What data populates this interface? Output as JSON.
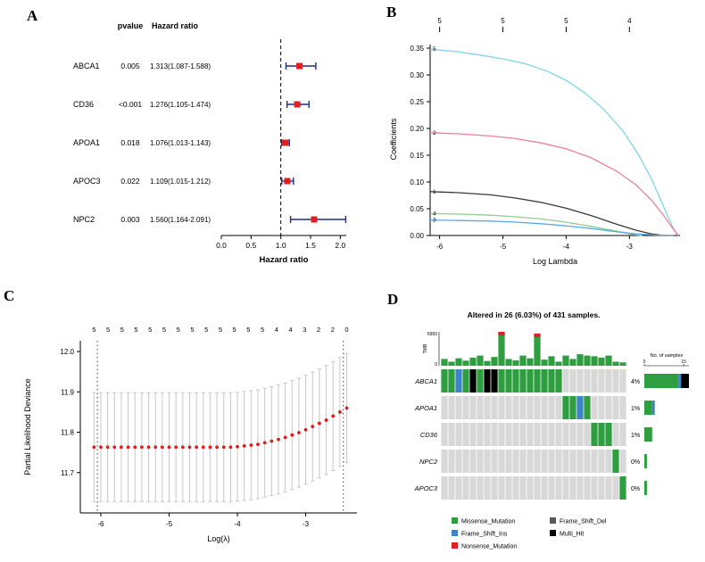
{
  "figure": {
    "panel_labels": [
      "A",
      "B",
      "C",
      "D"
    ],
    "bg": "#ffffff"
  },
  "chart_data": [
    {
      "id": "forest",
      "type": "scatter",
      "panel": "A",
      "headers": {
        "pvalue": "pvalue",
        "hazard_ratio": "Hazard ratio"
      },
      "rows": [
        {
          "gene": "ABCA1",
          "pvalue": "0.005",
          "ci_text": "1.313(1.087-1.588)",
          "hr": 1.313,
          "lo": 1.087,
          "hi": 1.588
        },
        {
          "gene": "CD36",
          "pvalue": "<0.001",
          "ci_text": "1.276(1.105-1.474)",
          "hr": 1.276,
          "lo": 1.105,
          "hi": 1.474
        },
        {
          "gene": "APOA1",
          "pvalue": "0.018",
          "ci_text": "1.076(1.013-1.143)",
          "hr": 1.076,
          "lo": 1.013,
          "hi": 1.143
        },
        {
          "gene": "APOC3",
          "pvalue": "0.022",
          "ci_text": "1.109(1.015-1.212)",
          "hr": 1.109,
          "lo": 1.015,
          "hi": 1.212
        },
        {
          "gene": "NPC2",
          "pvalue": "0.003",
          "ci_text": "1.560(1.164-2.091)",
          "hr": 1.56,
          "lo": 1.164,
          "hi": 2.091
        }
      ],
      "xlabel": "Hazard ratio",
      "x_ticks": [
        "0.0",
        "0.5",
        "1.0",
        "1.5",
        "2.0"
      ],
      "x_tick_values": [
        0,
        0.5,
        1,
        1.5,
        2
      ],
      "xlim": [
        0,
        2.1
      ],
      "ref_line": 1.0,
      "colors": {
        "marker": "#e02020",
        "ci": "#1f2d86"
      }
    },
    {
      "id": "lasso_paths",
      "type": "line",
      "panel": "B",
      "ylabel": "Coefficients",
      "xlabel": "Log Lambda",
      "xlim": [
        -6.15,
        -2.2
      ],
      "ylim": [
        0,
        0.35
      ],
      "x_ticks": [
        -6,
        -5,
        -4,
        -3
      ],
      "y_ticks": [
        "0.00",
        "0.05",
        "0.10",
        "0.15",
        "0.20",
        "0.25",
        "0.30",
        "0.35"
      ],
      "top_axis": {
        "positions": [
          -6,
          -5,
          -4,
          -3
        ],
        "labels": [
          "5",
          "5",
          "5",
          "4"
        ]
      },
      "series": [
        {
          "label": "5",
          "color": "#7dd6e8",
          "points": [
            [
              -6.15,
              0.348
            ],
            [
              -5.75,
              0.344
            ],
            [
              -5.35,
              0.337
            ],
            [
              -5.0,
              0.33
            ],
            [
              -4.65,
              0.321
            ],
            [
              -4.3,
              0.307
            ],
            [
              -4.0,
              0.29
            ],
            [
              -3.7,
              0.266
            ],
            [
              -3.4,
              0.235
            ],
            [
              -3.1,
              0.195
            ],
            [
              -2.85,
              0.15
            ],
            [
              -2.65,
              0.105
            ],
            [
              -2.5,
              0.065
            ],
            [
              -2.4,
              0.038
            ],
            [
              -2.3,
              0.012
            ],
            [
              -2.24,
              0.002
            ],
            [
              -2.22,
              0
            ]
          ]
        },
        {
          "label": "2",
          "color": "#ef7f96",
          "points": [
            [
              -6.15,
              0.192
            ],
            [
              -5.7,
              0.19
            ],
            [
              -5.2,
              0.186
            ],
            [
              -4.8,
              0.181
            ],
            [
              -4.4,
              0.173
            ],
            [
              -4.0,
              0.162
            ],
            [
              -3.6,
              0.145
            ],
            [
              -3.2,
              0.12
            ],
            [
              -2.9,
              0.095
            ],
            [
              -2.65,
              0.066
            ],
            [
              -2.45,
              0.036
            ],
            [
              -2.32,
              0.014
            ],
            [
              -2.24,
              0.002
            ],
            [
              -2.22,
              0
            ]
          ]
        },
        {
          "label": "1",
          "color": "#3a3a3a",
          "points": [
            [
              -6.15,
              0.082
            ],
            [
              -5.7,
              0.08
            ],
            [
              -5.2,
              0.076
            ],
            [
              -4.8,
              0.07
            ],
            [
              -4.4,
              0.062
            ],
            [
              -4.0,
              0.051
            ],
            [
              -3.6,
              0.037
            ],
            [
              -3.2,
              0.021
            ],
            [
              -2.9,
              0.01
            ],
            [
              -2.65,
              0.003
            ],
            [
              -2.45,
              0
            ],
            [
              -2.3,
              0
            ]
          ]
        },
        {
          "label": "4",
          "color": "#8fce8f",
          "points": [
            [
              -6.15,
              0.041
            ],
            [
              -5.7,
              0.04
            ],
            [
              -5.2,
              0.038
            ],
            [
              -4.8,
              0.035
            ],
            [
              -4.4,
              0.031
            ],
            [
              -4.0,
              0.025
            ],
            [
              -3.6,
              0.017
            ],
            [
              -3.2,
              0.008
            ],
            [
              -2.95,
              0.002
            ],
            [
              -2.8,
              0
            ]
          ]
        },
        {
          "label": "3",
          "color": "#5aa9e6",
          "points": [
            [
              -6.15,
              0.029
            ],
            [
              -5.7,
              0.028
            ],
            [
              -5.2,
              0.027
            ],
            [
              -4.8,
              0.025
            ],
            [
              -4.4,
              0.022
            ],
            [
              -4.0,
              0.018
            ],
            [
              -3.6,
              0.013
            ],
            [
              -3.2,
              0.007
            ],
            [
              -2.9,
              0.003
            ],
            [
              -2.6,
              0.001
            ],
            [
              -2.3,
              0
            ]
          ]
        }
      ]
    },
    {
      "id": "cv_curve",
      "type": "scatter",
      "panel": "C",
      "ylabel": "Partial Likelihood Deviance",
      "xlabel": "Log(λ)",
      "xlim": [
        -6.3,
        -2.25
      ],
      "ylim": [
        11.6,
        12.02
      ],
      "x_ticks": [
        -6,
        -5,
        -4,
        -3
      ],
      "y_ticks": [
        "11.7",
        "11.8",
        "11.9",
        "12.0"
      ],
      "y_tick_values": [
        11.7,
        11.8,
        11.9,
        12.0
      ],
      "top_labels": [
        "5",
        "5",
        "5",
        "5",
        "5",
        "5",
        "5",
        "5",
        "5",
        "5",
        "5",
        "5",
        "5",
        "4",
        "4",
        "3",
        "2",
        "2",
        "0"
      ],
      "vlines": [
        -6.05,
        -2.45
      ],
      "err": 0.135,
      "point_color": "#e31a1c",
      "bar_color": "#c8c8c8",
      "points_x": [
        -6.1,
        -6.0,
        -5.9,
        -5.8,
        -5.7,
        -5.6,
        -5.5,
        -5.4,
        -5.3,
        -5.2,
        -5.1,
        -5.0,
        -4.9,
        -4.8,
        -4.7,
        -4.6,
        -4.5,
        -4.4,
        -4.3,
        -4.2,
        -4.1,
        -4.0,
        -3.9,
        -3.8,
        -3.7,
        -3.6,
        -3.5,
        -3.4,
        -3.3,
        -3.2,
        -3.1,
        -3.0,
        -2.9,
        -2.8,
        -2.7,
        -2.6,
        -2.5,
        -2.4
      ],
      "points_y": [
        11.763,
        11.763,
        11.763,
        11.763,
        11.763,
        11.763,
        11.763,
        11.763,
        11.763,
        11.763,
        11.763,
        11.763,
        11.763,
        11.763,
        11.763,
        11.763,
        11.763,
        11.763,
        11.763,
        11.763,
        11.763,
        11.764,
        11.766,
        11.768,
        11.77,
        11.774,
        11.778,
        11.782,
        11.787,
        11.793,
        11.799,
        11.806,
        11.814,
        11.822,
        11.83,
        11.84,
        11.85,
        11.86
      ]
    },
    {
      "id": "oncoprint",
      "type": "heatmap",
      "panel": "D",
      "title": "Altered in 26 (6.03%) of 431 samples.",
      "n_samples": 26,
      "genes": [
        {
          "name": "ABCA1",
          "pct": "4%",
          "cells": [
            [
              0,
              "M"
            ],
            [
              1,
              "M"
            ],
            [
              2,
              "FI"
            ],
            [
              3,
              "M"
            ],
            [
              4,
              "MH"
            ],
            [
              5,
              "M"
            ],
            [
              6,
              "MH"
            ],
            [
              7,
              "MH"
            ],
            [
              8,
              "M"
            ],
            [
              9,
              "M"
            ],
            [
              10,
              "M"
            ],
            [
              11,
              "M"
            ],
            [
              12,
              "M"
            ],
            [
              13,
              "M"
            ],
            [
              14,
              "M"
            ],
            [
              15,
              "M"
            ],
            [
              16,
              "M"
            ]
          ],
          "bar": [
            [
              "M",
              13
            ],
            [
              "FI",
              1
            ],
            [
              "MH",
              3
            ]
          ]
        },
        {
          "name": "APOA1",
          "pct": "1%",
          "cells": [
            [
              17,
              "M"
            ],
            [
              18,
              "M"
            ],
            [
              19,
              "FI"
            ],
            [
              20,
              "M"
            ]
          ],
          "bar": [
            [
              "M",
              3
            ],
            [
              "FI",
              1
            ]
          ]
        },
        {
          "name": "CD36",
          "pct": "1%",
          "cells": [
            [
              21,
              "M"
            ],
            [
              22,
              "M"
            ],
            [
              23,
              "M"
            ]
          ],
          "bar": [
            [
              "M",
              3
            ]
          ]
        },
        {
          "name": "NPC2",
          "pct": "0%",
          "cells": [
            [
              24,
              "M"
            ]
          ],
          "bar": [
            [
              "M",
              1
            ]
          ]
        },
        {
          "name": "APOC3",
          "pct": "0%",
          "cells": [
            [
              25,
              "M"
            ]
          ],
          "bar": [
            [
              "M",
              1
            ]
          ]
        }
      ],
      "mutation_colors": {
        "M": "#2f9e41",
        "FI": "#3d85c6",
        "NM": "#e02020",
        "FD": "#595959",
        "MH": "#000000"
      },
      "bg_cell": "#d8d8d8",
      "top_bars": {
        "heights": [
          0.2,
          0.12,
          0.22,
          0.15,
          0.24,
          0.3,
          0.14,
          0.26,
          1.0,
          0.2,
          0.16,
          0.3,
          0.22,
          0.95,
          0.18,
          0.28,
          0.12,
          0.3,
          0.2,
          0.34,
          0.3,
          0.28,
          0.24,
          0.3,
          0.12,
          0.1
        ],
        "red_cap": [
          8,
          13
        ],
        "axis_top": "5950",
        "axis_bottom": "0",
        "label": "TMB"
      },
      "right_axis": {
        "label": "No. of samples",
        "ticks": [
          "0",
          "15"
        ],
        "max": 17
      },
      "legend": [
        {
          "label": "Missense_Mutation",
          "key": "M"
        },
        {
          "label": "Frame_Shift_Ins",
          "key": "FI"
        },
        {
          "label": "Nonsense_Mutation",
          "key": "NM"
        },
        {
          "label": "Frame_Shift_Del",
          "key": "FD"
        },
        {
          "label": "Multi_Hit",
          "key": "MH"
        }
      ],
      "legend_cols": [
        [
          0,
          1,
          2
        ],
        [
          3,
          4
        ]
      ]
    }
  ]
}
